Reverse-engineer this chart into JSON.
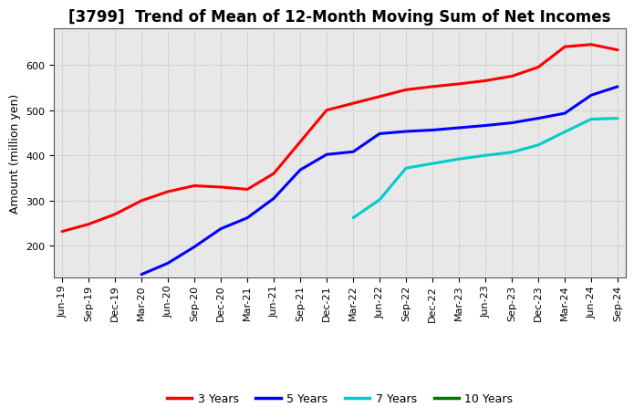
{
  "title": "[3799]  Trend of Mean of 12-Month Moving Sum of Net Incomes",
  "ylabel": "Amount (million yen)",
  "background_color": "#ffffff",
  "plot_bg_color": "#e8e8e8",
  "grid_color": "#aaaaaa",
  "ylim": [
    130,
    680
  ],
  "yticks": [
    200,
    300,
    400,
    500,
    600
  ],
  "series": {
    "3 Years": {
      "color": "#ff0000",
      "data": {
        "Jun-19": 232,
        "Sep-19": 248,
        "Dec-19": 270,
        "Mar-20": 300,
        "Jun-20": 320,
        "Sep-20": 333,
        "Dec-20": 330,
        "Mar-21": 325,
        "Jun-21": 360,
        "Sep-21": 430,
        "Dec-21": 500,
        "Mar-22": 515,
        "Jun-22": 530,
        "Sep-22": 545,
        "Dec-22": 552,
        "Mar-23": 558,
        "Jun-23": 565,
        "Sep-23": 575,
        "Dec-23": 595,
        "Mar-24": 640,
        "Jun-24": 645,
        "Sep-24": 633
      }
    },
    "5 Years": {
      "color": "#0000ff",
      "data": {
        "Mar-20": 137,
        "Jun-20": 162,
        "Sep-20": 198,
        "Dec-20": 238,
        "Mar-21": 262,
        "Jun-21": 305,
        "Sep-21": 368,
        "Dec-21": 402,
        "Mar-22": 408,
        "Jun-22": 448,
        "Sep-22": 453,
        "Dec-22": 456,
        "Mar-23": 461,
        "Jun-23": 466,
        "Sep-23": 472,
        "Dec-23": 482,
        "Mar-24": 493,
        "Jun-24": 533,
        "Sep-24": 552
      }
    },
    "7 Years": {
      "color": "#00cccc",
      "data": {
        "Mar-22": 262,
        "Jun-22": 302,
        "Sep-22": 372,
        "Dec-22": 382,
        "Mar-23": 392,
        "Jun-23": 400,
        "Sep-23": 407,
        "Dec-23": 423,
        "Mar-24": 452,
        "Jun-24": 480,
        "Sep-24": 482
      }
    },
    "10 Years": {
      "color": "#007700",
      "data": {}
    }
  },
  "xtick_labels": [
    "Jun-19",
    "Sep-19",
    "Dec-19",
    "Mar-20",
    "Jun-20",
    "Sep-20",
    "Dec-20",
    "Mar-21",
    "Jun-21",
    "Sep-21",
    "Dec-21",
    "Mar-22",
    "Jun-22",
    "Sep-22",
    "Dec-22",
    "Mar-23",
    "Jun-23",
    "Sep-23",
    "Dec-23",
    "Mar-24",
    "Jun-24",
    "Sep-24"
  ],
  "legend_labels": [
    "3 Years",
    "5 Years",
    "7 Years",
    "10 Years"
  ],
  "legend_colors": [
    "#ff0000",
    "#0000ff",
    "#00cccc",
    "#007700"
  ],
  "title_fontsize": 12,
  "axis_fontsize": 9,
  "tick_fontsize": 8,
  "legend_fontsize": 9,
  "linewidth": 2.2
}
